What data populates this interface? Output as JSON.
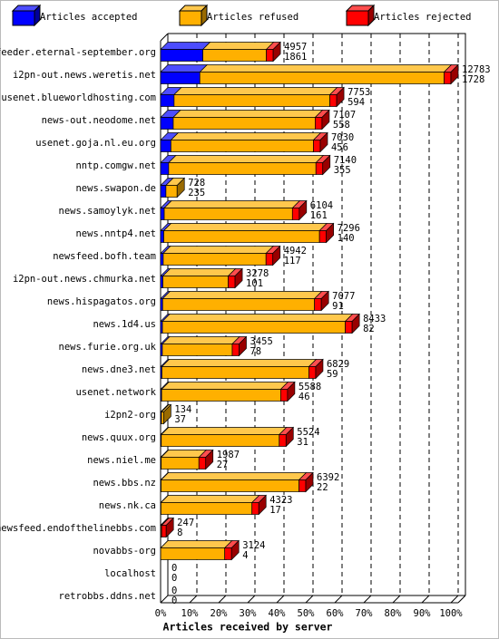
{
  "chart_data": {
    "type": "bar3d",
    "stacked": true,
    "horizontal": true,
    "x_label": "Articles received by server",
    "categories": [
      "feeder.eternal-september.org",
      "i2pn-out.news.weretis.net",
      "usenet.blueworldhosting.com",
      "news-out.neodome.net",
      "usenet.goja.nl.eu.org",
      "nntp.comgw.net",
      "news.swapon.de",
      "news.samoylyk.net",
      "news.nntp4.net",
      "newsfeed.bofh.team",
      "i2pn-out.news.chmurka.net",
      "news.hispagatos.org",
      "news.1d4.us",
      "news.furie.org.uk",
      "news.dne3.net",
      "usenet.network",
      "i2pn2-org",
      "news.quux.org",
      "news.niel.me",
      "news.bbs.nz",
      "news.nk.ca",
      "newsfeed.endofthelinebbs.com",
      "novabbs-org",
      "localhost",
      "retrobbs.ddns.net"
    ],
    "totals": [
      4957,
      12783,
      7753,
      7107,
      7030,
      7140,
      728,
      6104,
      7296,
      4942,
      3278,
      7077,
      8433,
      3455,
      6829,
      5588,
      134,
      5524,
      1987,
      6392,
      4323,
      247,
      3124,
      0,
      0
    ],
    "series": [
      {
        "name": "Articles accepted",
        "color": "#0000ff",
        "values": [
          1861,
          1728,
          594,
          558,
          456,
          355,
          235,
          161,
          140,
          117,
          101,
          91,
          82,
          78,
          59,
          46,
          37,
          31,
          27,
          22,
          17,
          8,
          4,
          0,
          0
        ]
      },
      {
        "name": "Articles refused",
        "color": "#ffb000",
        "values": [
          2796,
          10755,
          6859,
          6249,
          6274,
          6485,
          493,
          5643,
          6856,
          4525,
          2877,
          6686,
          8051,
          3077,
          6470,
          5242,
          97,
          5193,
          1660,
          6070,
          4006,
          39,
          2820,
          0,
          0
        ]
      },
      {
        "name": "Articles rejected",
        "color": "#ff0000",
        "values": [
          300,
          300,
          300,
          300,
          300,
          300,
          0,
          300,
          300,
          300,
          300,
          300,
          300,
          300,
          300,
          300,
          0,
          300,
          300,
          300,
          300,
          200,
          300,
          0,
          0
        ]
      }
    ],
    "xlim": [
      0,
      12783
    ],
    "xticks": [
      {
        "value": 0,
        "label": "0%"
      },
      {
        "value": 1278.3,
        "label": "10%"
      },
      {
        "value": 2556.6,
        "label": "20%"
      },
      {
        "value": 3834.9,
        "label": "30%"
      },
      {
        "value": 5113.2,
        "label": "40%"
      },
      {
        "value": 6391.5,
        "label": "50%"
      },
      {
        "value": 7669.8,
        "label": "60%"
      },
      {
        "value": 8948.1,
        "label": "70%"
      },
      {
        "value": 10226.4,
        "label": "80%"
      },
      {
        "value": 11504.7,
        "label": "90%"
      },
      {
        "value": 12783,
        "label": "100%"
      }
    ],
    "grid": true
  }
}
